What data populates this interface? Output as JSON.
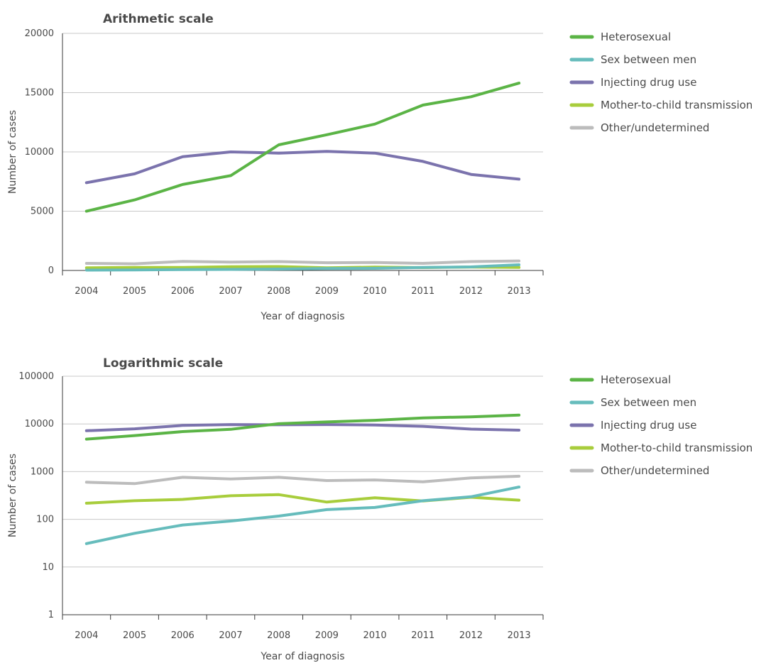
{
  "chart_data": [
    {
      "type": "line",
      "title": "Arithmetic scale",
      "xlabel": "Year of diagnosis",
      "ylabel": "Number of cases",
      "scale": "linear",
      "ylim": [
        0,
        20000
      ],
      "yticks": [
        0,
        5000,
        10000,
        15000,
        20000
      ],
      "grid": true,
      "legend": "right",
      "categories": [
        "2004",
        "2005",
        "2006",
        "2007",
        "2008",
        "2009",
        "2010",
        "2011",
        "2012",
        "2013"
      ],
      "series": [
        {
          "name": "Heterosexual",
          "color": "#5bb446",
          "values": [
            5000,
            5950,
            7250,
            8000,
            10600,
            11450,
            12350,
            13950,
            14650,
            15800
          ]
        },
        {
          "name": "Sex between men",
          "color": "#66bcbc",
          "values": [
            30,
            50,
            80,
            90,
            120,
            160,
            180,
            250,
            300,
            480
          ]
        },
        {
          "name": "Injecting drug use",
          "color": "#7b73ad",
          "values": [
            7400,
            8150,
            9600,
            10000,
            9900,
            10050,
            9900,
            9200,
            8100,
            7700
          ]
        },
        {
          "name": "Mother-to-child transmission",
          "color": "#a8cd3c",
          "values": [
            220,
            250,
            260,
            310,
            330,
            230,
            280,
            240,
            290,
            250
          ]
        },
        {
          "name": "Other/undetermined",
          "color": "#bcbcbc",
          "values": [
            600,
            560,
            760,
            700,
            750,
            650,
            670,
            600,
            750,
            800
          ]
        }
      ]
    },
    {
      "type": "line",
      "title": "Logarithmic scale",
      "xlabel": "Year of diagnosis",
      "ylabel": "Number of cases",
      "scale": "log",
      "ylim": [
        1,
        100000
      ],
      "yticks": [
        1,
        10,
        100,
        1000,
        10000,
        100000
      ],
      "grid": true,
      "legend": "right",
      "categories": [
        "2004",
        "2005",
        "2006",
        "2007",
        "2008",
        "2009",
        "2010",
        "2011",
        "2012",
        "2013"
      ],
      "series": [
        {
          "name": "Heterosexual",
          "color": "#5bb446",
          "values": [
            4800,
            5700,
            6900,
            7700,
            10100,
            11000,
            11900,
            13400,
            14100,
            15300
          ]
        },
        {
          "name": "Sex between men",
          "color": "#66bcbc",
          "values": [
            31,
            51,
            76,
            92,
            117,
            160,
            177,
            245,
            297,
            475
          ]
        },
        {
          "name": "Injecting drug use",
          "color": "#7b73ad",
          "values": [
            7200,
            7900,
            9300,
            9700,
            9600,
            9700,
            9500,
            8900,
            7800,
            7400
          ]
        },
        {
          "name": "Mother-to-child transmission",
          "color": "#a8cd3c",
          "values": [
            218,
            245,
            262,
            312,
            330,
            230,
            283,
            242,
            290,
            252
          ]
        },
        {
          "name": "Other/undetermined",
          "color": "#bcbcbc",
          "values": [
            600,
            560,
            760,
            700,
            760,
            650,
            670,
            610,
            740,
            800
          ]
        }
      ]
    }
  ]
}
